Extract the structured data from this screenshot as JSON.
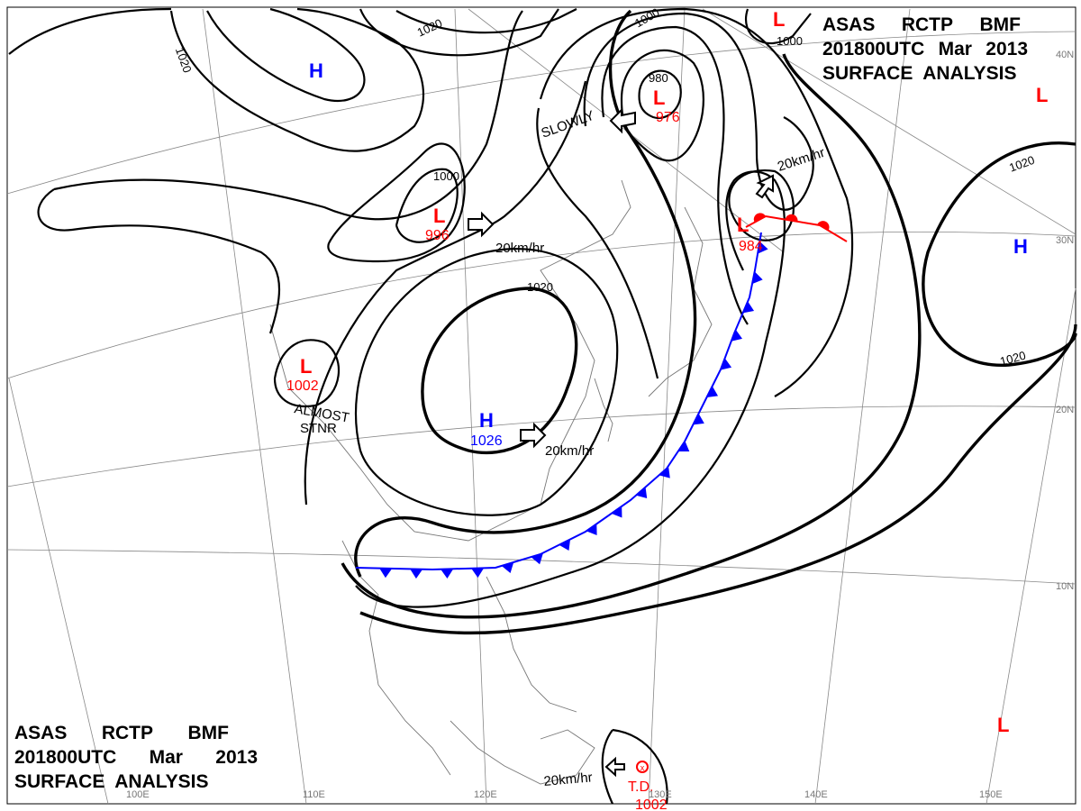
{
  "header": {
    "line1": [
      "ASAS",
      "RCTP",
      "BMF"
    ],
    "line2": [
      "201800UTC",
      "Mar",
      "2013"
    ],
    "line3": "SURFACE  ANALYSIS"
  },
  "colors": {
    "high": "#0000ff",
    "low": "#ff0000",
    "cold_front": "#0000ff",
    "warm_front": "#ff0000",
    "isobar": "#000000",
    "grid": "#888888"
  },
  "pressure_centers": [
    {
      "type": "H",
      "value": "",
      "lat": "",
      "color": "#0000ff"
    },
    {
      "type": "L",
      "value": "996",
      "color": "#ff0000"
    },
    {
      "type": "L",
      "value": "976",
      "color": "#ff0000"
    },
    {
      "type": "L",
      "value": "984",
      "color": "#ff0000"
    },
    {
      "type": "H",
      "value": "1026",
      "color": "#0000ff"
    },
    {
      "type": "L",
      "value": "1002",
      "color": "#ff0000"
    },
    {
      "type": "H",
      "value": "",
      "color": "#0000ff"
    },
    {
      "type": "L",
      "value": "",
      "color": "#ff0000"
    },
    {
      "type": "L",
      "value": "",
      "color": "#ff0000"
    },
    {
      "type": "L",
      "value": "",
      "color": "#ff0000"
    }
  ],
  "tropical_depression": {
    "label": "T.D.",
    "value": "1002"
  },
  "isobar_labels": [
    "1020",
    "1020",
    "1000",
    "1000",
    "1000",
    "980",
    "1020",
    "1020",
    "1020"
  ],
  "motion_labels": [
    "SLOWLY",
    "20km/hr",
    "20km/hr",
    "20km/hr",
    "20km/hr"
  ],
  "stationary_label": [
    "ALMOST",
    "STNR"
  ],
  "latitude_labels": [
    "40N",
    "30N",
    "20N",
    "10N"
  ],
  "longitude_labels": [
    "100E",
    "110E",
    "120E",
    "130E",
    "140E",
    "150E"
  ]
}
